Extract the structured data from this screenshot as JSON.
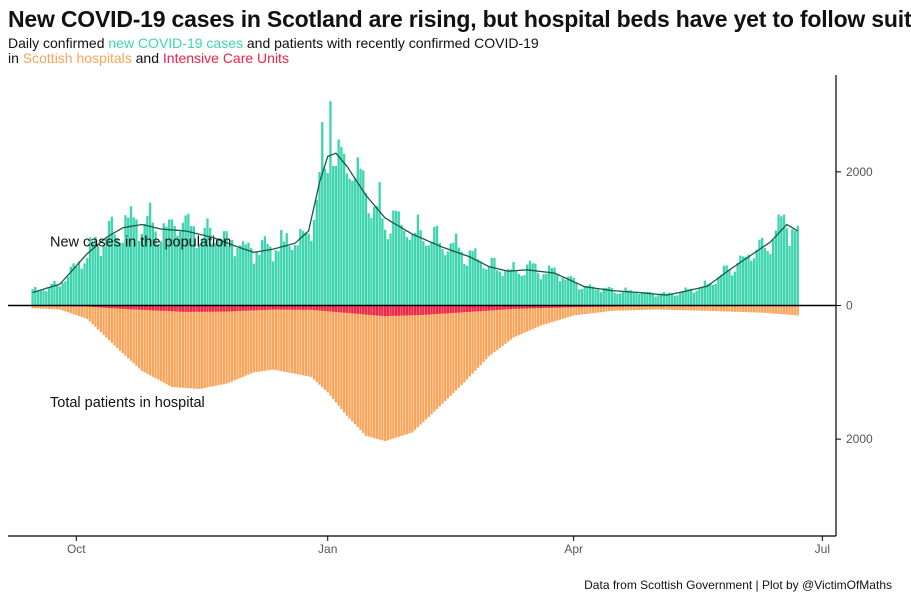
{
  "chart_data": {
    "type": "bar",
    "title": "New COVID-19 cases in Scotland are rising, but hospital beds have yet to follow suit",
    "subtitle": {
      "line1_pre": "Daily confirmed ",
      "cases_label": "new COVID-19 cases",
      "line1_post": " and patients with recently confirmed COVID-19",
      "line2_pre": "in ",
      "hospital_label": "Scottish hospitals",
      "line2_mid": " and ",
      "icu_label": "Intensive Care Units"
    },
    "caption": "Data from Scottish Government | Plot by @VictimOfMaths",
    "annotations": {
      "cases": "New cases in the population",
      "hospital": "Total patients in hospital"
    },
    "colors": {
      "cases": "#3ed4b0",
      "hospital": "#f8a45a",
      "icu": "#f0214a",
      "trend": "#1a5a45",
      "zero_line": "#000000"
    },
    "x_ticks": [
      {
        "label": "Oct",
        "date": "2020-10-01"
      },
      {
        "label": "Jan",
        "date": "2021-01-01"
      },
      {
        "label": "Apr",
        "date": "2021-04-01"
      },
      {
        "label": "Jul",
        "date": "2021-07-01"
      }
    ],
    "y_ticks": [
      {
        "label": "2000",
        "value": 2000
      },
      {
        "label": "0",
        "value": 0
      },
      {
        "label": "2000",
        "value": -2000
      }
    ],
    "xlim": [
      "2020-09-06",
      "2021-07-06"
    ],
    "ylim": [
      -3450,
      3450
    ],
    "series_anchors": {
      "note": "Approximate values read from the chart; daily bars interpolated between these anchor dates",
      "start_date": "2020-09-15",
      "end_date": "2021-06-22",
      "cases": [
        [
          "2020-09-15",
          200
        ],
        [
          "2020-09-25",
          330
        ],
        [
          "2020-10-05",
          800
        ],
        [
          "2020-10-12",
          1050
        ],
        [
          "2020-10-18",
          1200
        ],
        [
          "2020-10-25",
          1250
        ],
        [
          "2020-11-01",
          1180
        ],
        [
          "2020-11-10",
          1150
        ],
        [
          "2020-11-20",
          1050
        ],
        [
          "2020-11-28",
          920
        ],
        [
          "2020-12-05",
          820
        ],
        [
          "2020-12-12",
          870
        ],
        [
          "2020-12-20",
          960
        ],
        [
          "2020-12-25",
          1150
        ],
        [
          "2020-12-29",
          1900
        ],
        [
          "2021-01-01",
          2300
        ],
        [
          "2021-01-04",
          2350
        ],
        [
          "2021-01-08",
          2150
        ],
        [
          "2021-01-15",
          1700
        ],
        [
          "2021-01-22",
          1350
        ],
        [
          "2021-02-01",
          1100
        ],
        [
          "2021-02-12",
          900
        ],
        [
          "2021-02-22",
          750
        ],
        [
          "2021-03-01",
          600
        ],
        [
          "2021-03-08",
          530
        ],
        [
          "2021-03-15",
          550
        ],
        [
          "2021-03-25",
          500
        ],
        [
          "2021-04-05",
          290
        ],
        [
          "2021-04-15",
          230
        ],
        [
          "2021-04-25",
          200
        ],
        [
          "2021-05-05",
          160
        ],
        [
          "2021-05-12",
          220
        ],
        [
          "2021-05-20",
          300
        ],
        [
          "2021-05-28",
          550
        ],
        [
          "2021-06-05",
          780
        ],
        [
          "2021-06-12",
          980
        ],
        [
          "2021-06-18",
          1250
        ],
        [
          "2021-06-22",
          1150
        ]
      ],
      "hospital": [
        [
          "2020-09-15",
          40
        ],
        [
          "2020-09-25",
          60
        ],
        [
          "2020-10-05",
          200
        ],
        [
          "2020-10-15",
          600
        ],
        [
          "2020-10-25",
          980
        ],
        [
          "2020-11-05",
          1220
        ],
        [
          "2020-11-15",
          1250
        ],
        [
          "2020-11-25",
          1170
        ],
        [
          "2020-12-05",
          1000
        ],
        [
          "2020-12-12",
          960
        ],
        [
          "2020-12-20",
          1020
        ],
        [
          "2020-12-26",
          1070
        ],
        [
          "2021-01-01",
          1300
        ],
        [
          "2021-01-08",
          1650
        ],
        [
          "2021-01-15",
          1950
        ],
        [
          "2021-01-22",
          2030
        ],
        [
          "2021-02-01",
          1900
        ],
        [
          "2021-02-10",
          1550
        ],
        [
          "2021-02-20",
          1150
        ],
        [
          "2021-03-01",
          760
        ],
        [
          "2021-03-10",
          480
        ],
        [
          "2021-03-20",
          300
        ],
        [
          "2021-04-01",
          150
        ],
        [
          "2021-04-15",
          80
        ],
        [
          "2021-05-01",
          60
        ],
        [
          "2021-05-20",
          80
        ],
        [
          "2021-06-10",
          110
        ],
        [
          "2021-06-22",
          150
        ]
      ],
      "icu": [
        [
          "2020-09-15",
          5
        ],
        [
          "2020-10-05",
          15
        ],
        [
          "2020-10-20",
          55
        ],
        [
          "2020-11-10",
          95
        ],
        [
          "2020-11-25",
          90
        ],
        [
          "2020-12-12",
          60
        ],
        [
          "2020-12-26",
          65
        ],
        [
          "2021-01-08",
          110
        ],
        [
          "2021-01-22",
          160
        ],
        [
          "2021-02-05",
          140
        ],
        [
          "2021-02-20",
          100
        ],
        [
          "2021-03-10",
          50
        ],
        [
          "2021-04-01",
          25
        ],
        [
          "2021-05-01",
          8
        ],
        [
          "2021-06-22",
          10
        ]
      ]
    }
  }
}
